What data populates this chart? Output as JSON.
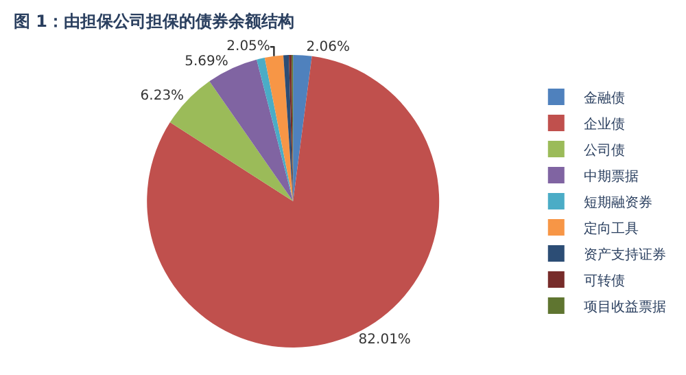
{
  "chart_data": {
    "type": "pie",
    "title": "图 1：由担保公司担保的债券余额结构",
    "categories": [
      "金融债",
      "企业债",
      "公司债",
      "中期票据",
      "短期融资券",
      "定向工具",
      "资产支持证券",
      "可转债",
      "项目收益票据"
    ],
    "values": [
      2.06,
      82.01,
      6.23,
      5.69,
      0.9,
      2.05,
      0.6,
      0.3,
      0.16
    ],
    "value_labels": [
      "2.06%",
      "82.01%",
      "6.23%",
      "5.69%",
      null,
      "2.05%",
      null,
      null,
      null
    ],
    "colors": [
      "#4f81bd",
      "#c0504d",
      "#9bbb59",
      "#8064a2",
      "#4bacc6",
      "#f79646",
      "#2c4d75",
      "#772c2a",
      "#5f7530"
    ],
    "legend": "right"
  }
}
